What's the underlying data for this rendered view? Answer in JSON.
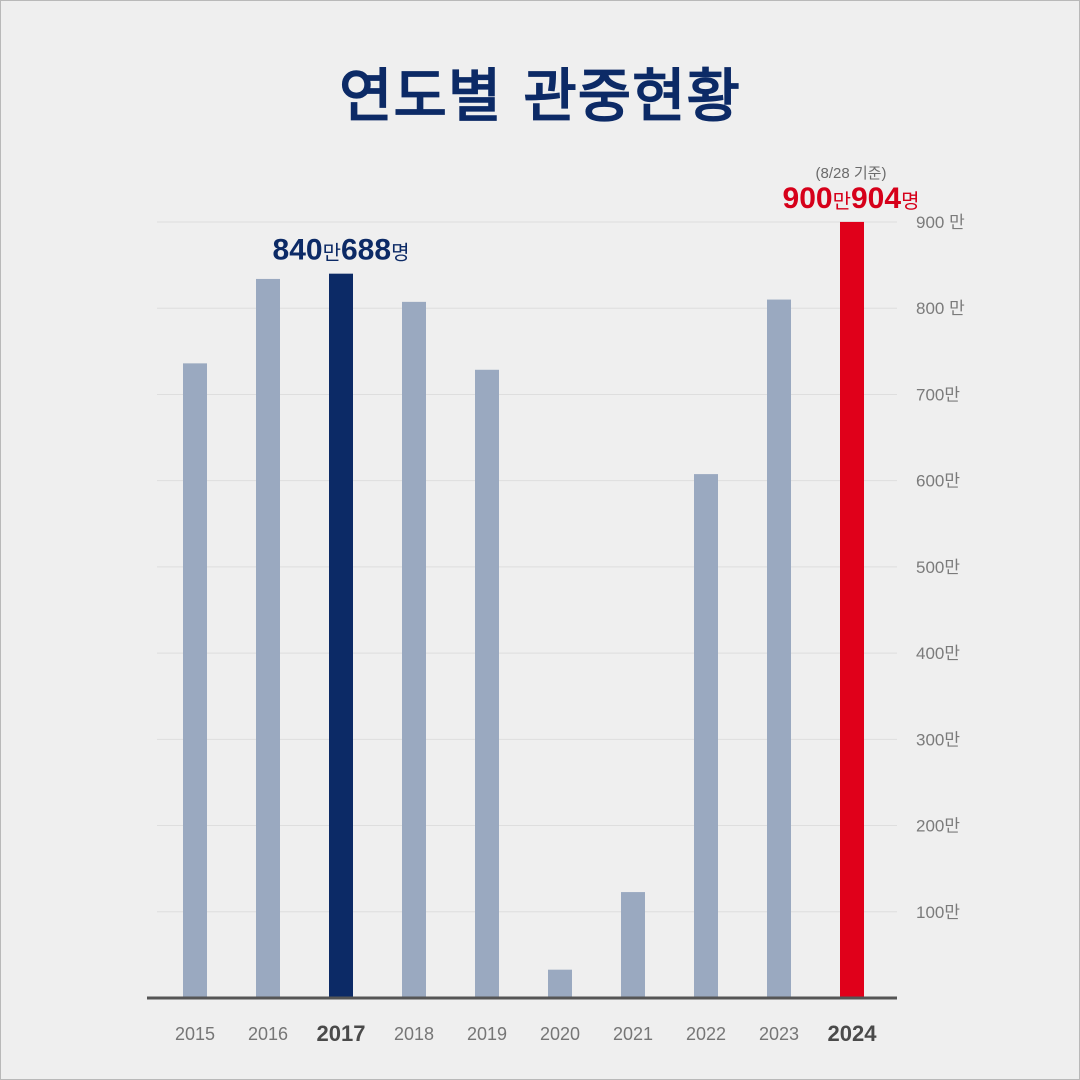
{
  "chart_data": {
    "type": "bar",
    "title": "연도별 관중현황",
    "categories": [
      "2015",
      "2016",
      "2017",
      "2018",
      "2019",
      "2020",
      "2021",
      "2022",
      "2023",
      "2024"
    ],
    "values": [
      7360530,
      8339577,
      8400688,
      8073742,
      7286008,
      328317,
      1228489,
      6076074,
      8100326,
      9000904
    ],
    "highlight": [
      "2017",
      "2024"
    ],
    "ylim": [
      0,
      9000000
    ],
    "yticks": [
      {
        "value": 1000000,
        "label": "100만"
      },
      {
        "value": 2000000,
        "label": "200만"
      },
      {
        "value": 3000000,
        "label": "300만"
      },
      {
        "value": 4000000,
        "label": "400만"
      },
      {
        "value": 5000000,
        "label": "500만"
      },
      {
        "value": 6000000,
        "label": "600만"
      },
      {
        "value": 7000000,
        "label": "700만"
      },
      {
        "value": 8000000,
        "label": "800 만"
      },
      {
        "value": 9000000,
        "label": "900 만"
      }
    ],
    "annotations": [
      {
        "category": "2017",
        "big1": "840",
        "small1": "만",
        "big2": "688",
        "small2": "명",
        "note": ""
      },
      {
        "category": "2024",
        "big1": "900",
        "small1": "만",
        "big2": "904",
        "small2": "명",
        "note": "(8/28 기준)"
      }
    ],
    "grid": true,
    "xlabel": "",
    "ylabel": ""
  },
  "colors": {
    "background": "#efefef",
    "title": "#0c2a66",
    "bar": "#9aa9c0",
    "bar_2017": "#0c2a66",
    "bar_2024": "#e0001a",
    "label_2017": "#0c2a66",
    "label_2024": "#d6001a",
    "axis": "#555555"
  }
}
